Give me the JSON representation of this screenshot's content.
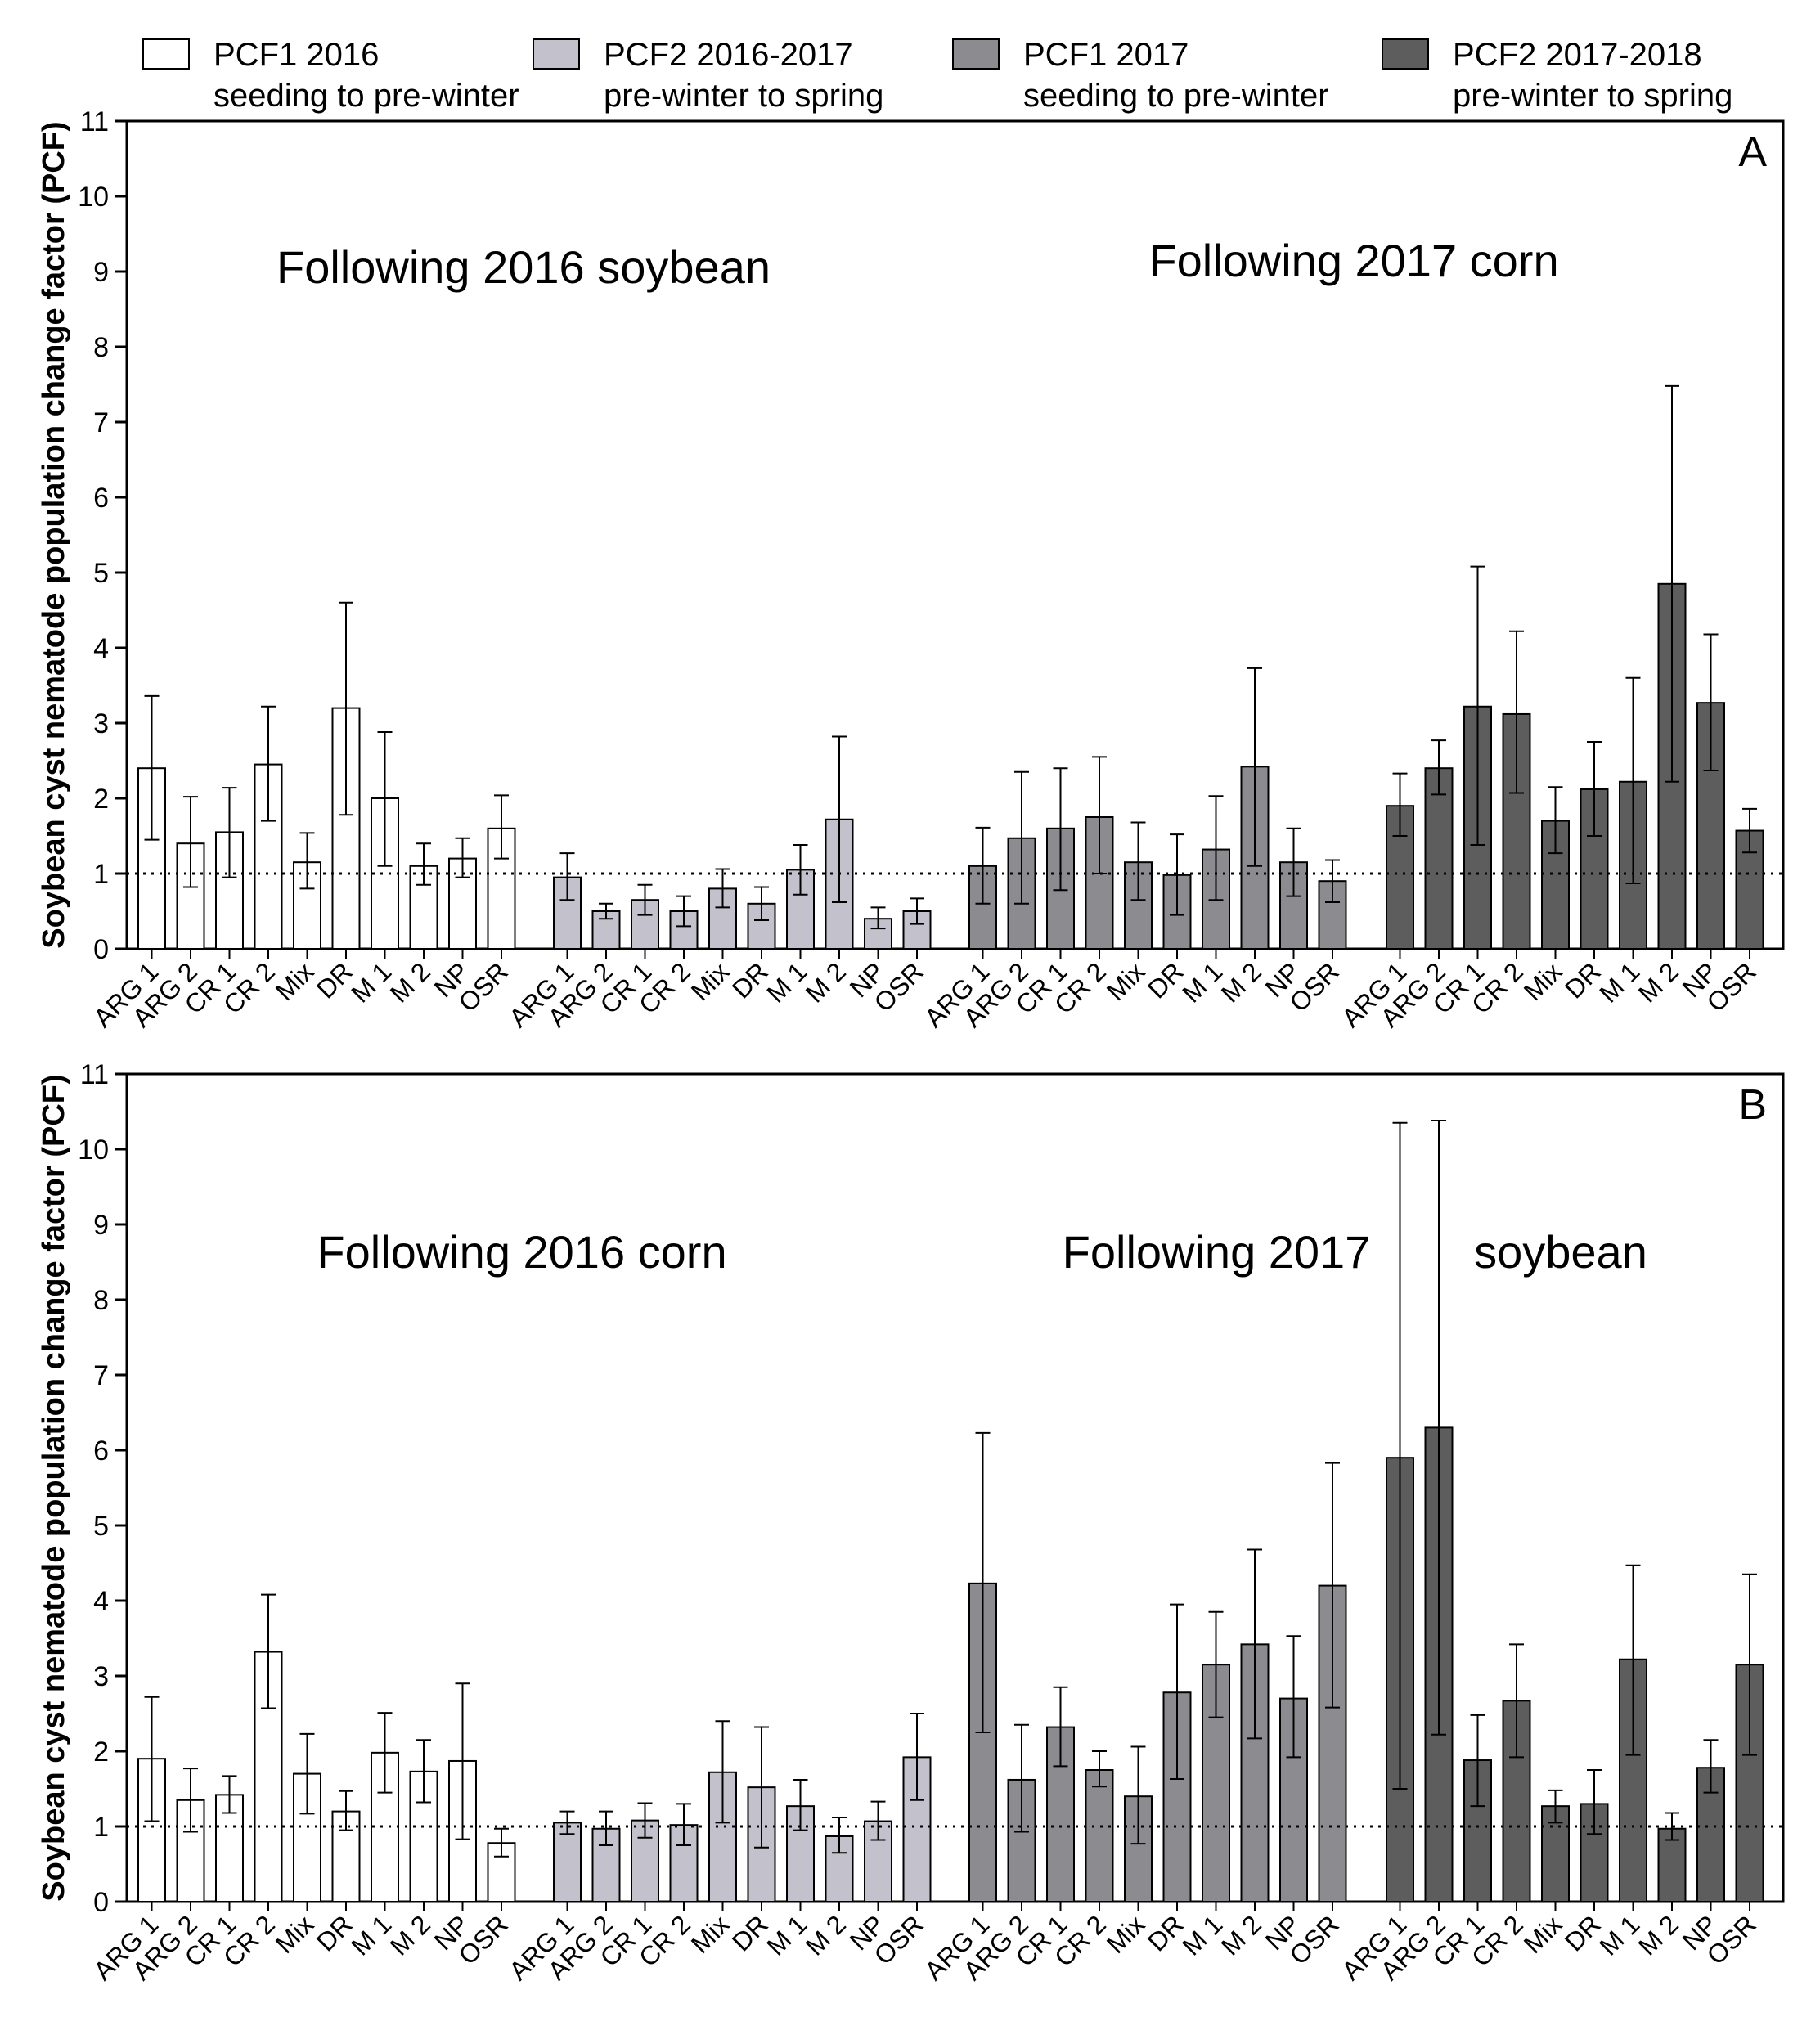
{
  "chart_data": {
    "type": "bar",
    "legend": {
      "position": "top",
      "entries": [
        {
          "line1": "PCF1 2016",
          "line2": "seeding to pre-winter",
          "color": "#ffffff"
        },
        {
          "line1": "PCF2 2016-2017",
          "line2": "pre-winter to spring",
          "color": "#c3c2cc"
        },
        {
          "line1": "PCF1 2017",
          "line2": "seeding to pre-winter",
          "color": "#8c8b8f"
        },
        {
          "line1": "PCF2 2017-2018",
          "line2": "pre-winter to spring",
          "color": "#5d5d5d"
        }
      ]
    },
    "categories": [
      "ARG 1",
      "ARG 2",
      "CR 1",
      "CR 2",
      "Mix",
      "DR",
      "M 1",
      "M 2",
      "NP",
      "OSR"
    ],
    "ylabel": "Soybean cyst nematode population change factor (PCF)",
    "ylim": [
      0,
      11
    ],
    "yticks": [
      "0",
      "1",
      "2",
      "3",
      "4",
      "5",
      "6",
      "7",
      "8",
      "9",
      "10",
      "11"
    ],
    "reference_line": 1,
    "panels": [
      {
        "letter": "A",
        "group_labels": [
          "Following 2016 soybean",
          "Following 2017 corn"
        ],
        "series": [
          {
            "values": [
              2.4,
              1.4,
              1.55,
              2.45,
              1.15,
              3.2,
              2.0,
              1.1,
              1.2,
              1.6
            ],
            "err_low": [
              1.45,
              0.82,
              0.95,
              1.7,
              0.8,
              1.78,
              1.1,
              0.85,
              0.95,
              1.2
            ],
            "err_high": [
              3.36,
              2.02,
              2.14,
              3.22,
              1.54,
              4.6,
              2.88,
              1.4,
              1.47,
              2.04
            ]
          },
          {
            "values": [
              0.95,
              0.5,
              0.65,
              0.5,
              0.8,
              0.6,
              1.05,
              1.72,
              0.4,
              0.5
            ],
            "err_low": [
              0.65,
              0.4,
              0.45,
              0.3,
              0.55,
              0.38,
              0.72,
              0.62,
              0.27,
              0.33
            ],
            "err_high": [
              1.27,
              0.6,
              0.85,
              0.7,
              1.06,
              0.82,
              1.38,
              2.82,
              0.55,
              0.67
            ]
          },
          {
            "values": [
              1.1,
              1.47,
              1.6,
              1.75,
              1.15,
              0.98,
              1.32,
              2.42,
              1.15,
              0.9
            ],
            "err_low": [
              0.6,
              0.6,
              0.78,
              1.0,
              0.65,
              0.45,
              0.65,
              1.1,
              0.7,
              0.62
            ],
            "err_high": [
              1.61,
              2.35,
              2.4,
              2.55,
              1.68,
              1.52,
              2.03,
              3.73,
              1.6,
              1.18
            ]
          },
          {
            "values": [
              1.9,
              2.4,
              3.22,
              3.12,
              1.7,
              2.12,
              2.22,
              4.85,
              3.27,
              1.57
            ],
            "err_low": [
              1.5,
              2.05,
              1.38,
              2.07,
              1.27,
              1.5,
              0.87,
              2.22,
              2.37,
              1.28
            ],
            "err_high": [
              2.33,
              2.77,
              5.08,
              4.22,
              2.15,
              2.75,
              3.6,
              7.48,
              4.18,
              1.86
            ]
          }
        ]
      },
      {
        "letter": "B",
        "group_labels": [
          "Following 2016 corn",
          "Following 2017",
          "soybean"
        ],
        "series": [
          {
            "values": [
              1.9,
              1.35,
              1.42,
              3.32,
              1.7,
              1.2,
              1.98,
              1.73,
              1.87,
              0.78
            ],
            "err_low": [
              1.07,
              0.93,
              1.18,
              2.57,
              1.17,
              0.95,
              1.45,
              1.32,
              0.83,
              0.6
            ],
            "err_high": [
              2.72,
              1.77,
              1.67,
              4.08,
              2.23,
              1.47,
              2.51,
              2.15,
              2.9,
              0.97
            ]
          },
          {
            "values": [
              1.05,
              0.97,
              1.08,
              1.02,
              1.72,
              1.52,
              1.27,
              0.87,
              1.07,
              1.92
            ],
            "err_low": [
              0.9,
              0.75,
              0.85,
              0.75,
              1.05,
              0.72,
              0.95,
              0.65,
              0.82,
              1.35
            ],
            "err_high": [
              1.2,
              1.2,
              1.31,
              1.3,
              2.4,
              2.32,
              1.62,
              1.12,
              1.33,
              2.5
            ]
          },
          {
            "values": [
              4.23,
              1.62,
              2.32,
              1.75,
              1.4,
              2.78,
              3.15,
              3.42,
              2.7,
              4.2
            ],
            "err_low": [
              2.25,
              0.93,
              1.8,
              1.53,
              0.77,
              1.63,
              2.45,
              2.17,
              1.92,
              2.58
            ],
            "err_high": [
              6.23,
              2.35,
              2.85,
              2.0,
              2.06,
              3.95,
              3.85,
              4.68,
              3.53,
              5.83
            ]
          },
          {
            "values": [
              5.9,
              6.3,
              1.88,
              2.67,
              1.27,
              1.3,
              3.22,
              0.97,
              1.78,
              3.15
            ],
            "err_low": [
              1.5,
              2.22,
              1.27,
              1.92,
              1.05,
              0.9,
              1.95,
              0.82,
              1.45,
              1.95
            ],
            "err_high": [
              10.35,
              10.38,
              2.48,
              3.42,
              1.48,
              1.75,
              4.47,
              1.18,
              2.15,
              4.35
            ]
          }
        ]
      }
    ]
  }
}
